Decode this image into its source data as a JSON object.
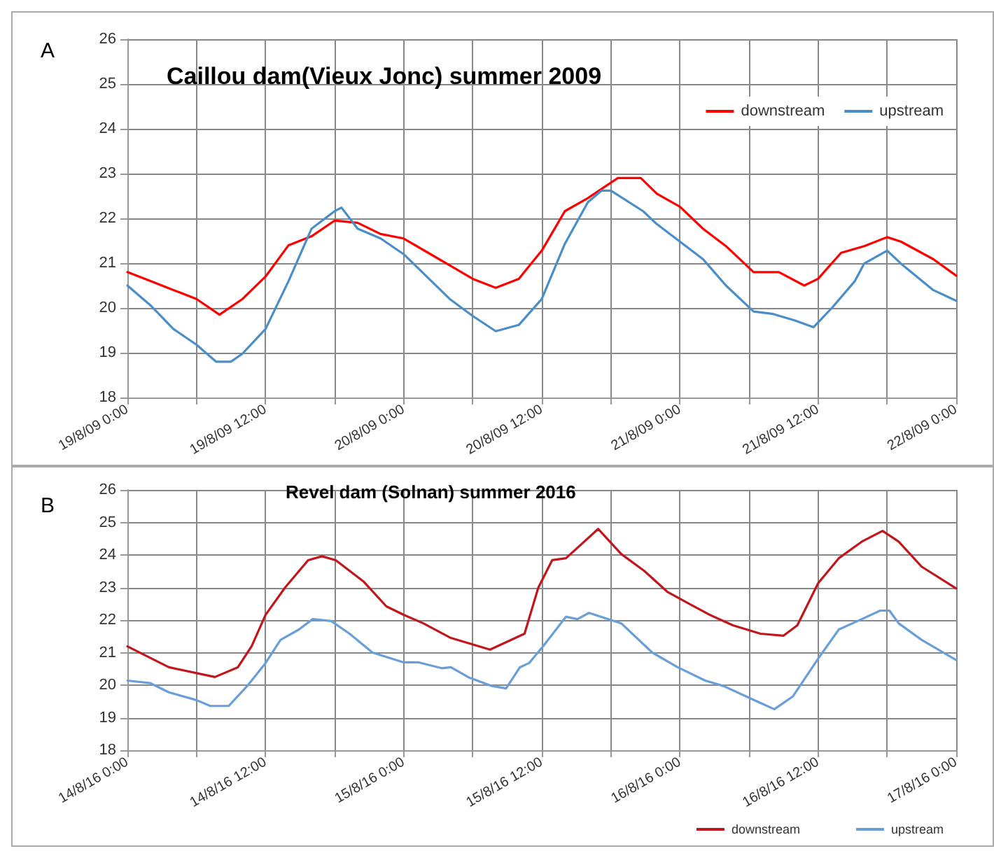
{
  "chart_data": [
    {
      "type": "line",
      "title": "Caillou dam(Vieux Jonc) summer 2009",
      "annotations": [
        "A"
      ],
      "legend": "top right",
      "grid": true,
      "marker": "none",
      "line_style": "solid",
      "xlim": [
        "2009-08-19T00:00",
        "2009-08-22T00:00"
      ],
      "ylim": [
        18,
        26
      ],
      "yticks": [
        18,
        19,
        20,
        21,
        22,
        23,
        24,
        25,
        26
      ],
      "xticks": [
        {
          "value": "2009-08-19T00:00",
          "label": "19/8/09 0:00"
        },
        {
          "value": "2009-08-19T06:00",
          "label": null
        },
        {
          "value": "2009-08-19T12:00",
          "label": "19/8/09 12:00"
        },
        {
          "value": "2009-08-19T18:00",
          "label": null
        },
        {
          "value": "2009-08-20T00:00",
          "label": "20/8/09 0:00"
        },
        {
          "value": "2009-08-20T06:00",
          "label": null
        },
        {
          "value": "2009-08-20T12:00",
          "label": "20/8/09 12:00"
        },
        {
          "value": "2009-08-20T18:00",
          "label": null
        },
        {
          "value": "2009-08-21T00:00",
          "label": "21/8/09 0:00"
        },
        {
          "value": "2009-08-21T06:00",
          "label": null
        },
        {
          "value": "2009-08-21T12:00",
          "label": "21/8/09 12:00"
        },
        {
          "value": "2009-08-21T18:00",
          "label": null
        },
        {
          "value": "2009-08-22T00:00",
          "label": "22/8/09 0:00"
        }
      ],
      "series": [
        {
          "name": "downstream",
          "color": "#ff0000",
          "x": [
            "2009-08-19T00:00",
            "2009-08-19T02:00",
            "2009-08-19T04:00",
            "2009-08-19T06:00",
            "2009-08-19T08:00",
            "2009-08-19T10:00",
            "2009-08-19T12:00",
            "2009-08-19T14:00",
            "2009-08-19T16:00",
            "2009-08-19T18:00",
            "2009-08-19T20:00",
            "2009-08-19T22:00",
            "2009-08-20T00:00",
            "2009-08-20T02:00",
            "2009-08-20T04:00",
            "2009-08-20T06:00",
            "2009-08-20T08:00",
            "2009-08-20T10:00",
            "2009-08-20T12:00",
            "2009-08-20T14:00",
            "2009-08-20T16:00",
            "2009-08-20T18:36",
            "2009-08-20T20:36",
            "2009-08-20T22:00",
            "2009-08-21T00:00",
            "2009-08-21T02:00",
            "2009-08-21T04:00",
            "2009-08-21T06:24",
            "2009-08-21T08:36",
            "2009-08-21T10:48",
            "2009-08-21T12:00",
            "2009-08-21T14:00",
            "2009-08-21T16:00",
            "2009-08-21T18:00",
            "2009-08-21T19:12",
            "2009-08-21T22:00",
            "2009-08-22T00:00"
          ],
          "values": [
            20.8,
            20.6,
            20.4,
            20.2,
            19.85,
            20.2,
            20.7,
            21.4,
            21.6,
            21.95,
            21.9,
            21.65,
            21.55,
            21.25,
            20.95,
            20.65,
            20.45,
            20.65,
            21.28,
            22.16,
            22.45,
            22.9,
            22.9,
            22.55,
            22.26,
            21.77,
            21.38,
            20.8,
            20.8,
            20.5,
            20.65,
            21.23,
            21.38,
            21.58,
            21.48,
            21.09,
            20.72
          ]
        },
        {
          "name": "upstream",
          "color": "#4a8ec8",
          "x": [
            "2009-08-19T00:00",
            "2009-08-19T02:00",
            "2009-08-19T04:00",
            "2009-08-19T06:00",
            "2009-08-19T07:42",
            "2009-08-19T09:00",
            "2009-08-19T10:00",
            "2009-08-19T12:00",
            "2009-08-19T14:00",
            "2009-08-19T16:00",
            "2009-08-19T18:00",
            "2009-08-19T18:36",
            "2009-08-19T20:00",
            "2009-08-19T22:00",
            "2009-08-20T00:00",
            "2009-08-20T02:00",
            "2009-08-20T04:00",
            "2009-08-20T06:00",
            "2009-08-20T08:00",
            "2009-08-20T10:00",
            "2009-08-20T12:00",
            "2009-08-20T14:00",
            "2009-08-20T16:00",
            "2009-08-20T17:12",
            "2009-08-20T18:00",
            "2009-08-20T20:48",
            "2009-08-20T22:00",
            "2009-08-21T00:00",
            "2009-08-21T02:00",
            "2009-08-21T04:00",
            "2009-08-21T06:24",
            "2009-08-21T08:00",
            "2009-08-21T10:00",
            "2009-08-21T11:36",
            "2009-08-21T13:12",
            "2009-08-21T15:12",
            "2009-08-21T16:00",
            "2009-08-21T18:00",
            "2009-08-21T19:12",
            "2009-08-21T22:00",
            "2009-08-22T00:00"
          ],
          "values": [
            20.5,
            20.06,
            19.53,
            19.18,
            18.8,
            18.8,
            18.98,
            19.53,
            20.6,
            21.77,
            22.16,
            22.24,
            21.77,
            21.55,
            21.2,
            20.7,
            20.2,
            19.82,
            19.48,
            19.62,
            20.2,
            21.43,
            22.36,
            22.62,
            22.62,
            22.16,
            21.87,
            21.48,
            21.09,
            20.5,
            19.92,
            19.87,
            19.72,
            19.57,
            20.0,
            20.6,
            20.99,
            21.28,
            20.99,
            20.4,
            20.16
          ]
        }
      ]
    },
    {
      "type": "line",
      "title": "Revel dam (Solnan) summer 2016",
      "annotations": [
        "B"
      ],
      "legend": "bottom right",
      "grid": true,
      "marker": "none",
      "line_style": "solid",
      "xlim": [
        "2016-08-14T00:00",
        "2016-08-17T00:00"
      ],
      "ylim": [
        18,
        26
      ],
      "yticks": [
        18,
        19,
        20,
        21,
        22,
        23,
        24,
        25,
        26
      ],
      "xticks": [
        {
          "value": "2016-08-14T00:00",
          "label": "14/8/16 0:00"
        },
        {
          "value": "2016-08-14T06:00",
          "label": null
        },
        {
          "value": "2016-08-14T12:00",
          "label": "14/8/16 12:00"
        },
        {
          "value": "2016-08-14T18:00",
          "label": null
        },
        {
          "value": "2016-08-15T00:00",
          "label": "15/8/16 0:00"
        },
        {
          "value": "2016-08-15T06:00",
          "label": null
        },
        {
          "value": "2016-08-15T12:00",
          "label": "15/8/16 12:00"
        },
        {
          "value": "2016-08-15T18:00",
          "label": null
        },
        {
          "value": "2016-08-16T00:00",
          "label": "16/8/16 0:00"
        },
        {
          "value": "2016-08-16T06:00",
          "label": null
        },
        {
          "value": "2016-08-16T12:00",
          "label": "16/8/16 12:00"
        },
        {
          "value": "2016-08-16T18:00",
          "label": null
        },
        {
          "value": "2016-08-17T00:00",
          "label": "17/8/16 0:00"
        }
      ],
      "series": [
        {
          "name": "downstream",
          "color": "#c0161c",
          "x": [
            "2016-08-14T00:00",
            "2016-08-14T03:36",
            "2016-08-14T07:36",
            "2016-08-14T09:36",
            "2016-08-14T10:48",
            "2016-08-14T12:00",
            "2016-08-14T13:42",
            "2016-08-14T15:42",
            "2016-08-14T16:54",
            "2016-08-14T18:06",
            "2016-08-14T20:30",
            "2016-08-14T22:30",
            "2016-08-15T00:00",
            "2016-08-15T01:42",
            "2016-08-15T04:06",
            "2016-08-15T07:30",
            "2016-08-15T10:30",
            "2016-08-15T11:42",
            "2016-08-15T12:54",
            "2016-08-15T14:06",
            "2016-08-15T16:54",
            "2016-08-15T18:54",
            "2016-08-15T20:54",
            "2016-08-15T22:54",
            "2016-08-16T00:54",
            "2016-08-16T02:36",
            "2016-08-16T04:36",
            "2016-08-16T07:00",
            "2016-08-16T09:00",
            "2016-08-16T10:12",
            "2016-08-16T12:00",
            "2016-08-16T13:48",
            "2016-08-16T15:48",
            "2016-08-16T17:36",
            "2016-08-16T19:00",
            "2016-08-16T21:00",
            "2016-08-17T00:00"
          ],
          "values": [
            21.19,
            20.55,
            20.25,
            20.55,
            21.2,
            22.16,
            23.0,
            23.84,
            23.96,
            23.84,
            23.19,
            22.42,
            22.16,
            21.9,
            21.45,
            21.09,
            21.58,
            23.0,
            23.84,
            23.9,
            24.8,
            24.03,
            23.51,
            22.87,
            22.48,
            22.16,
            21.84,
            21.58,
            21.52,
            21.84,
            23.13,
            23.9,
            24.41,
            24.74,
            24.41,
            23.64,
            22.97
          ]
        },
        {
          "name": "upstream",
          "color": "#6a9ed8",
          "x": [
            "2016-08-14T00:00",
            "2016-08-14T02:00",
            "2016-08-14T03:36",
            "2016-08-14T06:00",
            "2016-08-14T07:12",
            "2016-08-14T08:48",
            "2016-08-14T10:24",
            "2016-08-14T12:00",
            "2016-08-14T13:18",
            "2016-08-14T14:54",
            "2016-08-14T16:06",
            "2016-08-14T17:42",
            "2016-08-14T19:18",
            "2016-08-14T21:18",
            "2016-08-15T00:00",
            "2016-08-15T01:18",
            "2016-08-15T03:18",
            "2016-08-15T04:06",
            "2016-08-15T05:42",
            "2016-08-15T07:42",
            "2016-08-15T08:54",
            "2016-08-15T10:06",
            "2016-08-15T10:54",
            "2016-08-15T12:06",
            "2016-08-15T14:06",
            "2016-08-15T15:06",
            "2016-08-15T16:06",
            "2016-08-15T18:54",
            "2016-08-15T21:36",
            "2016-08-15T23:48",
            "2016-08-16T02:12",
            "2016-08-16T03:48",
            "2016-08-16T06:12",
            "2016-08-16T07:00",
            "2016-08-16T08:12",
            "2016-08-16T09:48",
            "2016-08-16T12:00",
            "2016-08-16T13:48",
            "2016-08-16T15:48",
            "2016-08-16T17:24",
            "2016-08-16T18:12",
            "2016-08-16T19:00",
            "2016-08-16T21:00",
            "2016-08-17T00:00"
          ],
          "values": [
            20.14,
            20.06,
            19.78,
            19.54,
            19.36,
            19.36,
            19.97,
            20.68,
            21.39,
            21.71,
            22.03,
            21.97,
            21.58,
            21.0,
            20.7,
            20.7,
            20.52,
            20.55,
            20.23,
            19.97,
            19.9,
            20.55,
            20.68,
            21.19,
            22.1,
            22.03,
            22.22,
            21.9,
            21.0,
            20.55,
            20.14,
            19.97,
            19.58,
            19.45,
            19.26,
            19.65,
            20.81,
            21.71,
            22.03,
            22.29,
            22.29,
            21.9,
            21.39,
            20.77
          ]
        }
      ]
    }
  ]
}
